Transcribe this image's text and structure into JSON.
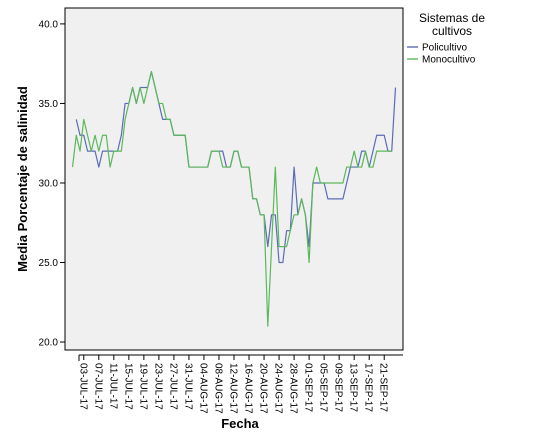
{
  "chart_data": {
    "type": "line",
    "xlabel": "Fecha",
    "ylabel": "Media Porcentaje de salinidad",
    "ylim": [
      19.5,
      41.0
    ],
    "yticks": [
      20.0,
      25.0,
      30.0,
      35.0,
      40.0
    ],
    "ytick_labels": [
      "20.0",
      "25.0",
      "30.0",
      "35.0",
      "40.0"
    ],
    "xlim": [
      "2017-06-28",
      "2017-09-26"
    ],
    "xtick_labels": [
      "03-JUL-17",
      "07-JUL-17",
      "11-JUL-17",
      "15-JUL-17",
      "19-JUL-17",
      "23-JUL-17",
      "27-JUL-17",
      "31-JUL-17",
      "04-AUG-17",
      "08-AUG-17",
      "12-AUG-17",
      "16-AUG-17",
      "20-AUG-17",
      "24-AUG-17",
      "28-AUG-17",
      "01-SEP-17",
      "05-SEP-17",
      "09-SEP-17",
      "13-SEP-17",
      "17-SEP-17",
      "21-SEP-17"
    ],
    "xtick_dates": [
      "2017-07-03",
      "2017-07-07",
      "2017-07-11",
      "2017-07-15",
      "2017-07-19",
      "2017-07-23",
      "2017-07-27",
      "2017-07-31",
      "2017-08-04",
      "2017-08-08",
      "2017-08-12",
      "2017-08-16",
      "2017-08-20",
      "2017-08-24",
      "2017-08-28",
      "2017-09-01",
      "2017-09-05",
      "2017-09-09",
      "2017-09-13",
      "2017-09-17",
      "2017-09-21"
    ],
    "grid": false,
    "legend": {
      "title": "Sistemas de cultivos",
      "position": "top-right-outside"
    },
    "series": [
      {
        "name": "Policultivo",
        "color": "#5b6bb5",
        "points": [
          [
            "2017-07-01",
            34
          ],
          [
            "2017-07-02",
            33
          ],
          [
            "2017-07-03",
            33
          ],
          [
            "2017-07-04",
            32
          ],
          [
            "2017-07-05",
            32
          ],
          [
            "2017-07-06",
            32
          ],
          [
            "2017-07-07",
            31
          ],
          [
            "2017-07-08",
            32
          ],
          [
            "2017-07-09",
            32
          ],
          [
            "2017-07-10",
            32
          ],
          [
            "2017-07-11",
            32
          ],
          [
            "2017-07-12",
            32
          ],
          [
            "2017-07-13",
            33
          ],
          [
            "2017-07-14",
            35
          ],
          [
            "2017-07-15",
            35
          ],
          [
            "2017-07-16",
            36
          ],
          [
            "2017-07-17",
            35
          ],
          [
            "2017-07-18",
            36
          ],
          [
            "2017-07-19",
            36
          ],
          [
            "2017-07-20",
            36
          ],
          [
            "2017-07-21",
            37
          ],
          [
            "2017-07-22",
            36
          ],
          [
            "2017-07-23",
            35
          ],
          [
            "2017-07-24",
            34
          ],
          [
            "2017-07-25",
            34
          ],
          [
            "2017-07-26",
            34
          ],
          [
            "2017-07-27",
            33
          ],
          [
            "2017-07-28",
            33
          ],
          [
            "2017-07-29",
            33
          ],
          [
            "2017-07-30",
            33
          ],
          [
            "2017-07-31",
            31
          ],
          [
            "2017-08-01",
            31
          ],
          [
            "2017-08-02",
            31
          ],
          [
            "2017-08-03",
            31
          ],
          [
            "2017-08-04",
            31
          ],
          [
            "2017-08-05",
            31
          ],
          [
            "2017-08-06",
            32
          ],
          [
            "2017-08-07",
            32
          ],
          [
            "2017-08-08",
            32
          ],
          [
            "2017-08-09",
            32
          ],
          [
            "2017-08-10",
            31
          ],
          [
            "2017-08-11",
            31
          ],
          [
            "2017-08-12",
            32
          ],
          [
            "2017-08-13",
            32
          ],
          [
            "2017-08-14",
            31
          ],
          [
            "2017-08-15",
            31
          ],
          [
            "2017-08-16",
            31
          ],
          [
            "2017-08-17",
            29
          ],
          [
            "2017-08-18",
            29
          ],
          [
            "2017-08-19",
            28
          ],
          [
            "2017-08-20",
            28
          ],
          [
            "2017-08-21",
            26
          ],
          [
            "2017-08-22",
            28
          ],
          [
            "2017-08-23",
            28
          ],
          [
            "2017-08-24",
            25
          ],
          [
            "2017-08-25",
            25
          ],
          [
            "2017-08-26",
            27
          ],
          [
            "2017-08-27",
            27
          ],
          [
            "2017-08-28",
            31
          ],
          [
            "2017-08-29",
            28
          ],
          [
            "2017-08-30",
            29
          ],
          [
            "2017-08-31",
            28
          ],
          [
            "2017-09-01",
            26
          ],
          [
            "2017-09-02",
            30
          ],
          [
            "2017-09-03",
            30
          ],
          [
            "2017-09-04",
            30
          ],
          [
            "2017-09-05",
            30
          ],
          [
            "2017-09-06",
            29
          ],
          [
            "2017-09-07",
            29
          ],
          [
            "2017-09-08",
            29
          ],
          [
            "2017-09-09",
            29
          ],
          [
            "2017-09-10",
            29
          ],
          [
            "2017-09-11",
            30
          ],
          [
            "2017-09-12",
            31
          ],
          [
            "2017-09-13",
            31
          ],
          [
            "2017-09-14",
            31
          ],
          [
            "2017-09-15",
            32
          ],
          [
            "2017-09-16",
            32
          ],
          [
            "2017-09-17",
            31
          ],
          [
            "2017-09-18",
            32
          ],
          [
            "2017-09-19",
            33
          ],
          [
            "2017-09-20",
            33
          ],
          [
            "2017-09-21",
            33
          ],
          [
            "2017-09-22",
            32
          ],
          [
            "2017-09-23",
            32
          ],
          [
            "2017-09-24",
            36
          ]
        ]
      },
      {
        "name": "Monocultivo",
        "color": "#5cb85c",
        "points": [
          [
            "2017-06-30",
            31
          ],
          [
            "2017-07-01",
            33
          ],
          [
            "2017-07-02",
            32
          ],
          [
            "2017-07-03",
            34
          ],
          [
            "2017-07-04",
            33
          ],
          [
            "2017-07-05",
            32
          ],
          [
            "2017-07-06",
            33
          ],
          [
            "2017-07-07",
            32
          ],
          [
            "2017-07-08",
            33
          ],
          [
            "2017-07-09",
            33
          ],
          [
            "2017-07-10",
            31
          ],
          [
            "2017-07-11",
            32
          ],
          [
            "2017-07-12",
            32
          ],
          [
            "2017-07-13",
            32
          ],
          [
            "2017-07-14",
            34
          ],
          [
            "2017-07-15",
            35
          ],
          [
            "2017-07-16",
            36
          ],
          [
            "2017-07-17",
            35
          ],
          [
            "2017-07-18",
            36
          ],
          [
            "2017-07-19",
            35
          ],
          [
            "2017-07-20",
            36
          ],
          [
            "2017-07-21",
            37
          ],
          [
            "2017-07-22",
            36
          ],
          [
            "2017-07-23",
            35
          ],
          [
            "2017-07-24",
            35
          ],
          [
            "2017-07-25",
            34
          ],
          [
            "2017-07-26",
            34
          ],
          [
            "2017-07-27",
            33
          ],
          [
            "2017-07-28",
            33
          ],
          [
            "2017-07-29",
            33
          ],
          [
            "2017-07-30",
            33
          ],
          [
            "2017-07-31",
            31
          ],
          [
            "2017-08-01",
            31
          ],
          [
            "2017-08-02",
            31
          ],
          [
            "2017-08-03",
            31
          ],
          [
            "2017-08-04",
            31
          ],
          [
            "2017-08-05",
            31
          ],
          [
            "2017-08-06",
            32
          ],
          [
            "2017-08-07",
            32
          ],
          [
            "2017-08-08",
            32
          ],
          [
            "2017-08-09",
            31
          ],
          [
            "2017-08-10",
            31
          ],
          [
            "2017-08-11",
            31
          ],
          [
            "2017-08-12",
            32
          ],
          [
            "2017-08-13",
            32
          ],
          [
            "2017-08-14",
            31
          ],
          [
            "2017-08-15",
            31
          ],
          [
            "2017-08-16",
            31
          ],
          [
            "2017-08-17",
            29
          ],
          [
            "2017-08-18",
            29
          ],
          [
            "2017-08-19",
            28
          ],
          [
            "2017-08-20",
            28
          ],
          [
            "2017-08-21",
            21
          ],
          [
            "2017-08-22",
            26
          ],
          [
            "2017-08-23",
            31
          ],
          [
            "2017-08-24",
            26
          ],
          [
            "2017-08-25",
            26
          ],
          [
            "2017-08-26",
            26
          ],
          [
            "2017-08-27",
            27
          ],
          [
            "2017-08-28",
            28
          ],
          [
            "2017-08-29",
            28
          ],
          [
            "2017-08-30",
            29
          ],
          [
            "2017-08-31",
            28
          ],
          [
            "2017-09-01",
            25
          ],
          [
            "2017-09-02",
            30
          ],
          [
            "2017-09-03",
            31
          ],
          [
            "2017-09-04",
            30
          ],
          [
            "2017-09-05",
            30
          ],
          [
            "2017-09-06",
            30
          ],
          [
            "2017-09-07",
            30
          ],
          [
            "2017-09-08",
            30
          ],
          [
            "2017-09-09",
            30
          ],
          [
            "2017-09-10",
            30
          ],
          [
            "2017-09-11",
            31
          ],
          [
            "2017-09-12",
            31
          ],
          [
            "2017-09-13",
            32
          ],
          [
            "2017-09-14",
            31
          ],
          [
            "2017-09-15",
            31
          ],
          [
            "2017-09-16",
            32
          ],
          [
            "2017-09-17",
            31
          ],
          [
            "2017-09-18",
            31
          ],
          [
            "2017-09-19",
            32
          ],
          [
            "2017-09-20",
            32
          ],
          [
            "2017-09-21",
            32
          ],
          [
            "2017-09-22",
            32
          ],
          [
            "2017-09-23",
            32
          ]
        ]
      }
    ]
  }
}
